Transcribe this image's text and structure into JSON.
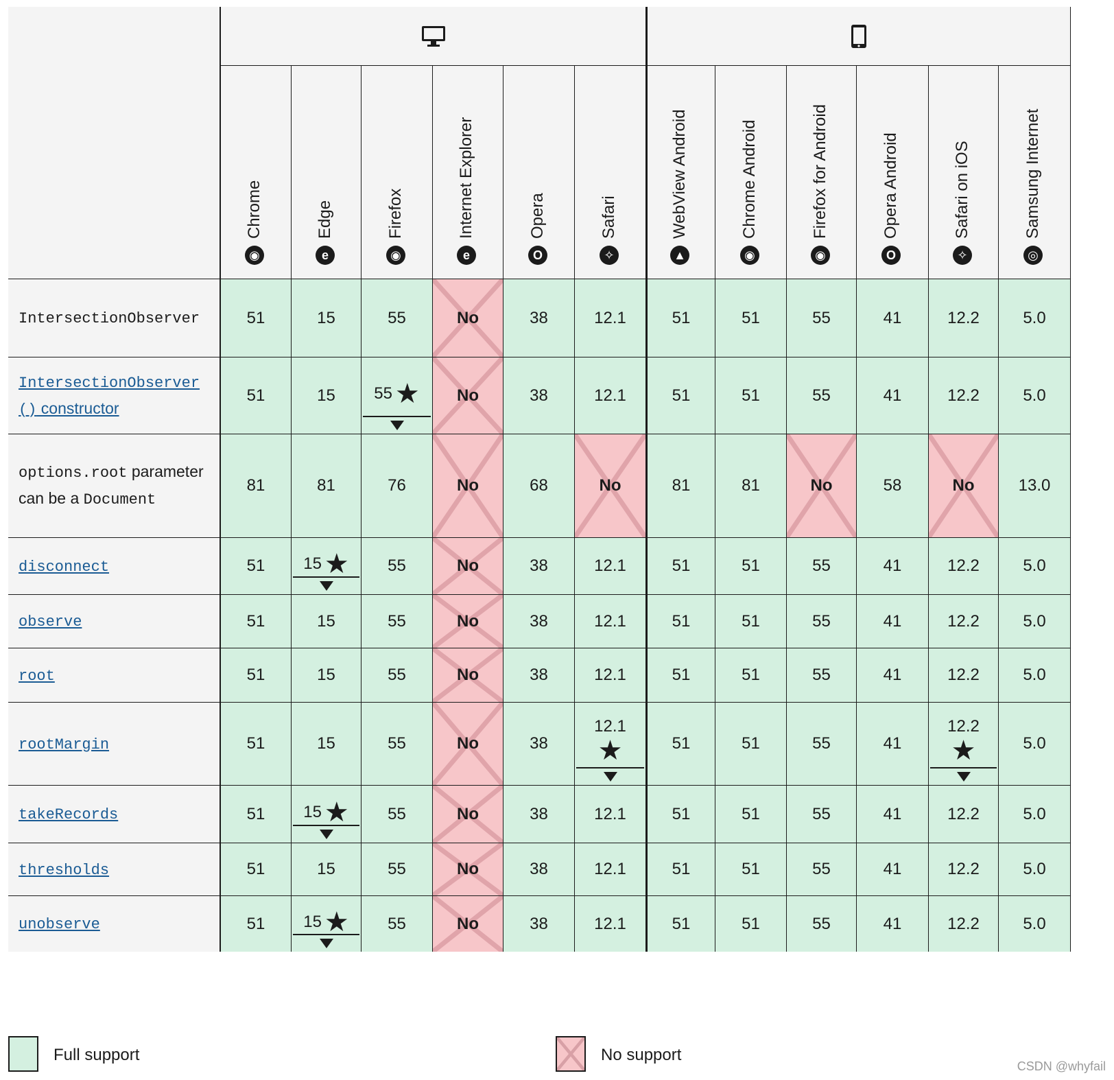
{
  "groups": [
    {
      "name": "desktop",
      "icon": "desktop-icon"
    },
    {
      "name": "mobile",
      "icon": "mobile-icon"
    }
  ],
  "browsers": [
    {
      "name": "Chrome",
      "icon": "chrome-icon",
      "glyph": "◉",
      "group": "desktop"
    },
    {
      "name": "Edge",
      "icon": "edge-icon",
      "glyph": "e",
      "group": "desktop"
    },
    {
      "name": "Firefox",
      "icon": "firefox-icon",
      "glyph": "◉",
      "group": "desktop"
    },
    {
      "name": "Internet Explorer",
      "icon": "internet-explorer-icon",
      "glyph": "e",
      "group": "desktop"
    },
    {
      "name": "Opera",
      "icon": "opera-icon",
      "glyph": "O",
      "group": "desktop"
    },
    {
      "name": "Safari",
      "icon": "safari-icon",
      "glyph": "✧",
      "group": "desktop"
    },
    {
      "name": "WebView Android",
      "icon": "android-icon",
      "glyph": "▲",
      "group": "mobile"
    },
    {
      "name": "Chrome Android",
      "icon": "chrome-icon",
      "glyph": "◉",
      "group": "mobile"
    },
    {
      "name": "Firefox for Android",
      "icon": "firefox-icon",
      "glyph": "◉",
      "group": "mobile"
    },
    {
      "name": "Opera Android",
      "icon": "opera-icon",
      "glyph": "O",
      "group": "mobile"
    },
    {
      "name": "Safari on iOS",
      "icon": "safari-icon",
      "glyph": "✧",
      "group": "mobile"
    },
    {
      "name": "Samsung Internet",
      "icon": "samsung-internet-icon",
      "glyph": "◎",
      "group": "mobile"
    }
  ],
  "features": [
    {
      "label": "IntersectionObserver",
      "is_link": false,
      "is_code": true,
      "suffix": "",
      "support": [
        {
          "v": "51"
        },
        {
          "v": "15"
        },
        {
          "v": "55"
        },
        {
          "v": "No"
        },
        {
          "v": "38"
        },
        {
          "v": "12.1"
        },
        {
          "v": "51"
        },
        {
          "v": "51"
        },
        {
          "v": "55"
        },
        {
          "v": "41"
        },
        {
          "v": "12.2"
        },
        {
          "v": "5.0"
        }
      ]
    },
    {
      "label": "IntersectionObserver()",
      "is_link": true,
      "is_code": true,
      "suffix": " constructor",
      "support": [
        {
          "v": "51"
        },
        {
          "v": "15"
        },
        {
          "v": "55",
          "note": true
        },
        {
          "v": "No"
        },
        {
          "v": "38"
        },
        {
          "v": "12.1"
        },
        {
          "v": "51"
        },
        {
          "v": "51"
        },
        {
          "v": "55"
        },
        {
          "v": "41"
        },
        {
          "v": "12.2"
        },
        {
          "v": "5.0"
        }
      ]
    },
    {
      "label": "options.root",
      "is_link": false,
      "is_code": true,
      "suffix": " parameter can be a ",
      "suffix_code": "Document",
      "support": [
        {
          "v": "81"
        },
        {
          "v": "81"
        },
        {
          "v": "76"
        },
        {
          "v": "No"
        },
        {
          "v": "68"
        },
        {
          "v": "No"
        },
        {
          "v": "81"
        },
        {
          "v": "81"
        },
        {
          "v": "No"
        },
        {
          "v": "58"
        },
        {
          "v": "No"
        },
        {
          "v": "13.0"
        }
      ]
    },
    {
      "label": "disconnect",
      "is_link": true,
      "is_code": true,
      "suffix": "",
      "support": [
        {
          "v": "51"
        },
        {
          "v": "15",
          "note": true
        },
        {
          "v": "55"
        },
        {
          "v": "No"
        },
        {
          "v": "38"
        },
        {
          "v": "12.1"
        },
        {
          "v": "51"
        },
        {
          "v": "51"
        },
        {
          "v": "55"
        },
        {
          "v": "41"
        },
        {
          "v": "12.2"
        },
        {
          "v": "5.0"
        }
      ]
    },
    {
      "label": "observe",
      "is_link": true,
      "is_code": true,
      "suffix": "",
      "support": [
        {
          "v": "51"
        },
        {
          "v": "15"
        },
        {
          "v": "55"
        },
        {
          "v": "No"
        },
        {
          "v": "38"
        },
        {
          "v": "12.1"
        },
        {
          "v": "51"
        },
        {
          "v": "51"
        },
        {
          "v": "55"
        },
        {
          "v": "41"
        },
        {
          "v": "12.2"
        },
        {
          "v": "5.0"
        }
      ]
    },
    {
      "label": "root",
      "is_link": true,
      "is_code": true,
      "suffix": "",
      "support": [
        {
          "v": "51"
        },
        {
          "v": "15"
        },
        {
          "v": "55"
        },
        {
          "v": "No"
        },
        {
          "v": "38"
        },
        {
          "v": "12.1"
        },
        {
          "v": "51"
        },
        {
          "v": "51"
        },
        {
          "v": "55"
        },
        {
          "v": "41"
        },
        {
          "v": "12.2"
        },
        {
          "v": "5.0"
        }
      ]
    },
    {
      "label": "rootMargin",
      "is_link": true,
      "is_code": true,
      "suffix": "",
      "support": [
        {
          "v": "51"
        },
        {
          "v": "15"
        },
        {
          "v": "55"
        },
        {
          "v": "No"
        },
        {
          "v": "38"
        },
        {
          "v": "12.1",
          "note": true,
          "stack": true
        },
        {
          "v": "51"
        },
        {
          "v": "51"
        },
        {
          "v": "55"
        },
        {
          "v": "41"
        },
        {
          "v": "12.2",
          "note": true,
          "stack": true
        },
        {
          "v": "5.0"
        }
      ]
    },
    {
      "label": "takeRecords",
      "is_link": true,
      "is_code": true,
      "suffix": "",
      "support": [
        {
          "v": "51"
        },
        {
          "v": "15",
          "note": true
        },
        {
          "v": "55"
        },
        {
          "v": "No"
        },
        {
          "v": "38"
        },
        {
          "v": "12.1"
        },
        {
          "v": "51"
        },
        {
          "v": "51"
        },
        {
          "v": "55"
        },
        {
          "v": "41"
        },
        {
          "v": "12.2"
        },
        {
          "v": "5.0"
        }
      ]
    },
    {
      "label": "thresholds",
      "is_link": true,
      "is_code": true,
      "suffix": "",
      "support": [
        {
          "v": "51"
        },
        {
          "v": "15"
        },
        {
          "v": "55"
        },
        {
          "v": "No"
        },
        {
          "v": "38"
        },
        {
          "v": "12.1"
        },
        {
          "v": "51"
        },
        {
          "v": "51"
        },
        {
          "v": "55"
        },
        {
          "v": "41"
        },
        {
          "v": "12.2"
        },
        {
          "v": "5.0"
        }
      ]
    },
    {
      "label": "unobserve",
      "is_link": true,
      "is_code": true,
      "suffix": "",
      "support": [
        {
          "v": "51"
        },
        {
          "v": "15",
          "note": true
        },
        {
          "v": "55"
        },
        {
          "v": "No"
        },
        {
          "v": "38"
        },
        {
          "v": "12.1"
        },
        {
          "v": "51"
        },
        {
          "v": "51"
        },
        {
          "v": "55"
        },
        {
          "v": "41"
        },
        {
          "v": "12.2"
        },
        {
          "v": "5.0"
        }
      ]
    }
  ],
  "legend": {
    "full_support": "Full support",
    "no_support": "No support"
  },
  "watermark": "CSDN @whyfail",
  "colors": {
    "full_support": "#d4f0e0",
    "no_support": "#f7c6c9",
    "link": "#1a5b94"
  }
}
